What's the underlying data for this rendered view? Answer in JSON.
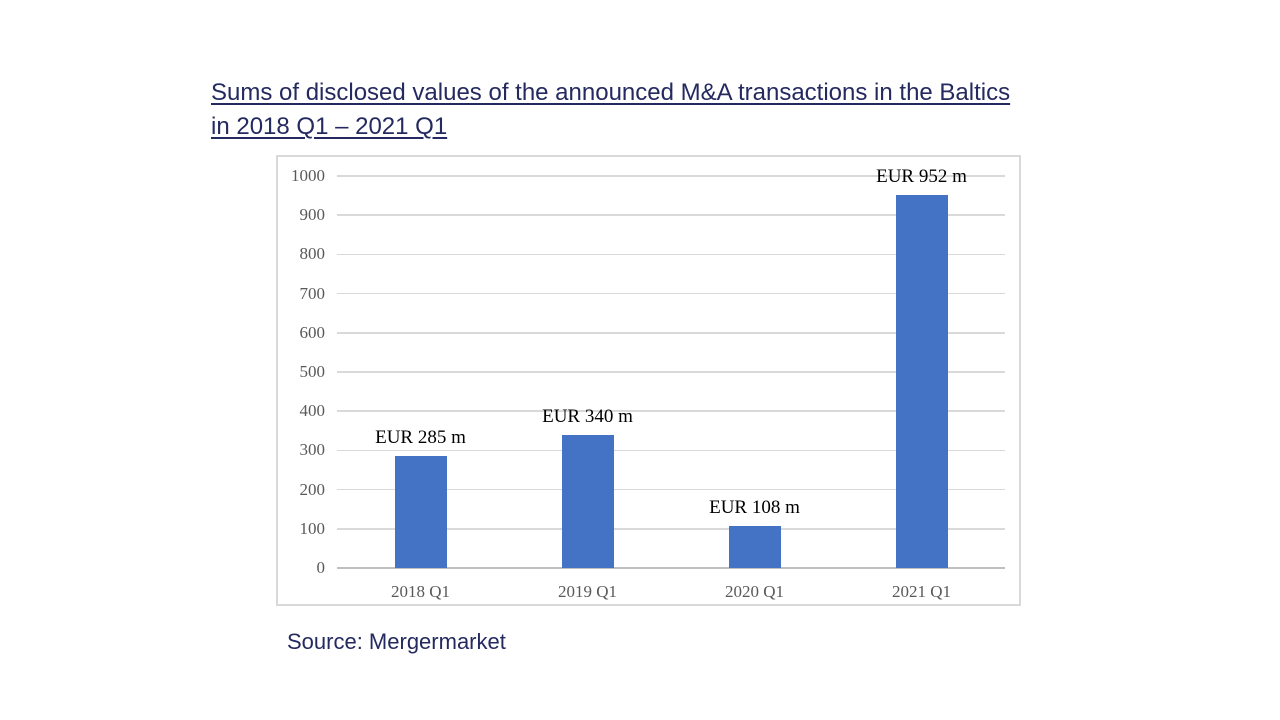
{
  "title": {
    "line1": "Sums of disclosed values of the announced M&A transactions in the Baltics",
    "line2": "in 2018 Q1 – 2021 Q1",
    "color": "#242A60"
  },
  "source": {
    "label": "Source: Mergermarket"
  },
  "chart_data": {
    "type": "bar",
    "title": "Sums of disclosed values of the announced M&A transactions in the Baltics in 2018 Q1 – 2021 Q1",
    "categories": [
      "2018 Q1",
      "2019 Q1",
      "2020 Q1",
      "2021 Q1"
    ],
    "values": [
      285,
      340,
      108,
      952
    ],
    "data_labels": [
      "EUR 285 m",
      "EUR 340 m",
      "EUR 108 m",
      "EUR 952 m"
    ],
    "unit": "EUR m",
    "xlabel": "",
    "ylabel": "",
    "ylim": [
      0,
      1000
    ],
    "yticks": [
      0,
      100,
      200,
      300,
      400,
      500,
      600,
      700,
      800,
      900,
      1000
    ],
    "grid": true,
    "legend": "none",
    "source": "Source: Mergermarket",
    "colors": {
      "bar": "#4472C4",
      "gridline": "#D9D9D9",
      "axis_line": "#BFBFBF",
      "tick_label": "#595959",
      "x_label": "#595959",
      "data_label": "#000000",
      "chart_border": "#D9D9D9",
      "background": "#FFFFFF"
    }
  }
}
